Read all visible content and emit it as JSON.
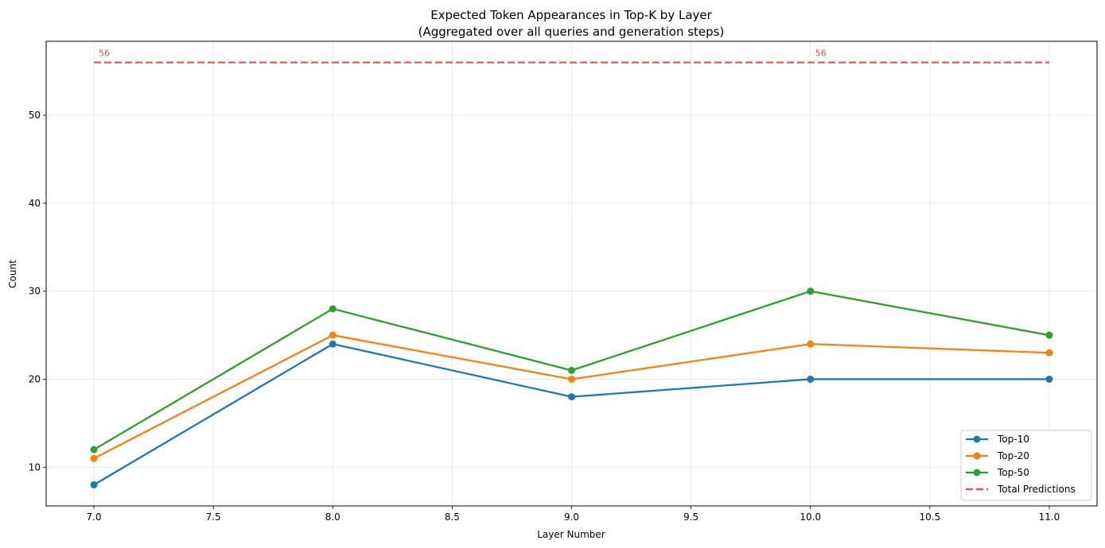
{
  "chart_data": {
    "type": "line",
    "title": "Expected Token Appearances in Top-K by Layer",
    "subtitle": "(Aggregated over all queries and generation steps)",
    "xlabel": "Layer Number",
    "ylabel": "Count",
    "x": [
      7.0,
      8.0,
      9.0,
      10.0,
      11.0
    ],
    "xlim": [
      6.8,
      11.2
    ],
    "ylim": [
      5.6,
      58.4
    ],
    "xticks": [
      "7.0",
      "7.5",
      "8.0",
      "8.5",
      "9.0",
      "9.5",
      "10.0",
      "10.5",
      "11.0"
    ],
    "xtick_values": [
      7.0,
      7.5,
      8.0,
      8.5,
      9.0,
      9.5,
      10.0,
      10.5,
      11.0
    ],
    "yticks": [
      "10",
      "20",
      "30",
      "40",
      "50"
    ],
    "ytick_values": [
      10,
      20,
      30,
      40,
      50
    ],
    "grid": true,
    "legend_position": "bottom-right",
    "series": [
      {
        "name": "Top-10",
        "values": [
          8,
          24,
          18,
          20,
          20
        ],
        "color": "#1f77b4",
        "style": "solid-marker"
      },
      {
        "name": "Top-20",
        "values": [
          11,
          25,
          20,
          24,
          23
        ],
        "color": "#ff7f0e",
        "style": "solid-marker"
      },
      {
        "name": "Top-50",
        "values": [
          12,
          28,
          21,
          30,
          25
        ],
        "color": "#2ca02c",
        "style": "solid-marker"
      },
      {
        "name": "Total Predictions",
        "values": [
          56,
          56,
          56,
          56,
          56
        ],
        "color": "#f04a4a",
        "style": "dashed"
      }
    ],
    "annotations": [
      {
        "text": "56",
        "x": 7.0,
        "y": 56
      },
      {
        "text": "56",
        "x": 10.0,
        "y": 56
      }
    ]
  }
}
